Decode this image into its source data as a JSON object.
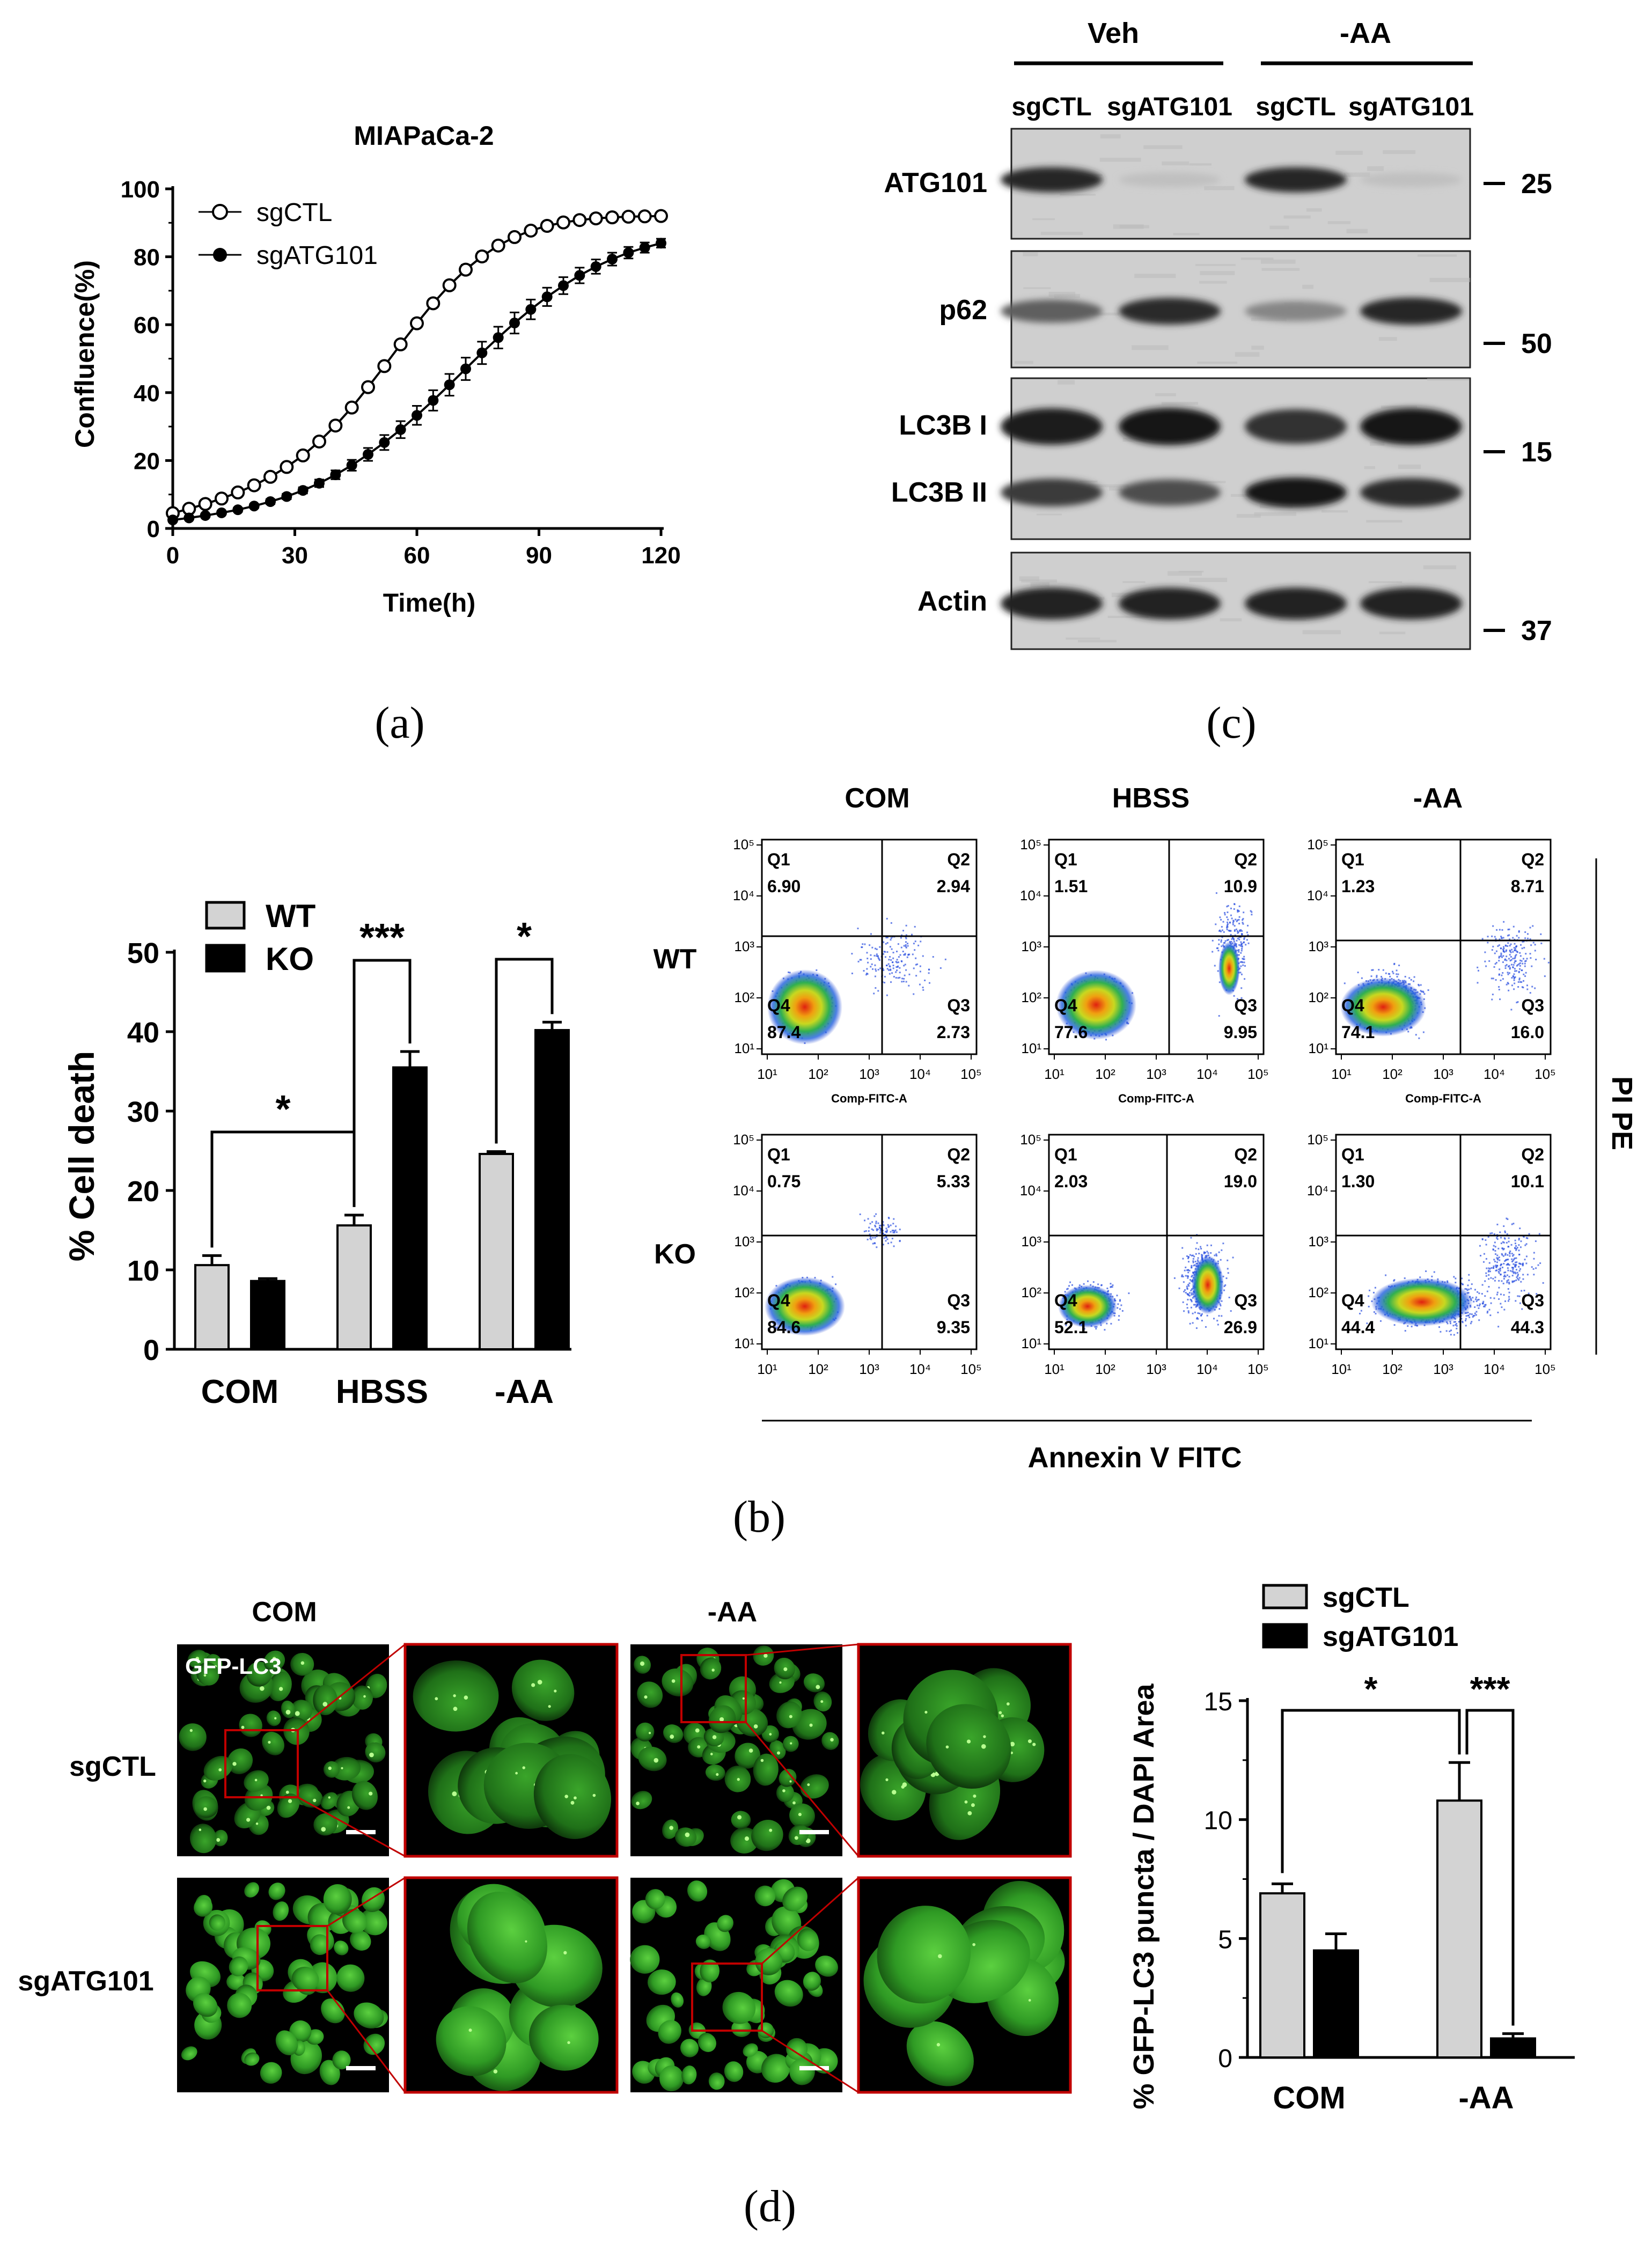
{
  "panel_labels": {
    "a": "(a)",
    "b": "(b)",
    "c": "(c)",
    "d": "(d)"
  },
  "colors": {
    "gray_bar": "#d3d3d3",
    "black_bar": "#000000",
    "gfp_green": "#3aaa2a",
    "inset_red": "#c00000"
  },
  "chart_data": [
    {
      "id": "a",
      "type": "line",
      "title": "MIAPaCa-2",
      "xlabel": "Time(h)",
      "ylabel": "Confluence(%)",
      "xlim": [
        0,
        120
      ],
      "ylim": [
        0,
        100
      ],
      "xticks": [
        0,
        30,
        60,
        90,
        120
      ],
      "yticks": [
        0,
        20,
        40,
        60,
        80,
        100
      ],
      "legend_position": "top-left",
      "x": [
        0,
        4,
        8,
        12,
        16,
        20,
        24,
        28,
        32,
        36,
        40,
        44,
        48,
        52,
        56,
        60,
        64,
        68,
        72,
        76,
        80,
        84,
        88,
        92,
        96,
        100,
        104,
        108,
        112,
        116,
        120
      ],
      "series": [
        {
          "name": "sgCTL",
          "marker": "open-circle",
          "values": [
            4.5,
            5.8,
            7.2,
            8.8,
            10.6,
            12.7,
            15.2,
            18.1,
            21.5,
            25.6,
            30.3,
            35.6,
            41.6,
            47.8,
            54.2,
            60.4,
            66.3,
            71.6,
            76.2,
            80.1,
            83.3,
            85.8,
            87.7,
            89.1,
            90.1,
            90.8,
            91.3,
            91.6,
            91.8,
            91.9,
            92.0
          ],
          "errors": [
            0.5,
            0.5,
            0.5,
            0.5,
            0.5,
            0.5,
            0.5,
            0.6,
            0.6,
            0.7,
            0.8,
            0.9,
            1.0,
            1.1,
            1.2,
            1.2,
            1.3,
            1.3,
            1.4,
            1.4,
            1.3,
            1.2,
            1.1,
            1.0,
            0.9,
            0.8,
            0.8,
            0.7,
            0.7,
            0.6,
            0.6
          ]
        },
        {
          "name": "sgATG101",
          "marker": "filled-circle",
          "values": [
            2.5,
            3.1,
            3.8,
            4.6,
            5.5,
            6.6,
            7.9,
            9.4,
            11.2,
            13.3,
            15.8,
            18.6,
            21.8,
            25.3,
            29.1,
            33.3,
            37.7,
            42.3,
            47.0,
            51.7,
            56.2,
            60.5,
            64.5,
            68.2,
            71.5,
            74.5,
            77.1,
            79.3,
            81.2,
            82.7,
            84.0
          ],
          "errors": [
            0.5,
            0.5,
            0.5,
            0.5,
            0.6,
            0.6,
            0.7,
            0.8,
            0.9,
            1.1,
            1.3,
            1.6,
            1.9,
            2.2,
            2.5,
            2.8,
            3.0,
            3.2,
            3.3,
            3.3,
            3.2,
            3.1,
            2.9,
            2.7,
            2.5,
            2.3,
            2.1,
            1.9,
            1.7,
            1.5,
            1.3
          ]
        }
      ]
    },
    {
      "id": "b-bars",
      "type": "bar",
      "ylabel": "% Cell death",
      "ylim": [
        0,
        50
      ],
      "yticks": [
        0,
        10,
        20,
        30,
        40,
        50
      ],
      "categories": [
        "COM",
        "HBSS",
        "-AA"
      ],
      "legend_position": "top-left",
      "series": [
        {
          "name": "WT",
          "values": [
            10.6,
            15.6,
            24.6
          ],
          "errors": [
            1.2,
            1.3,
            0.3
          ]
        },
        {
          "name": "KO",
          "values": [
            8.6,
            35.5,
            40.2
          ],
          "errors": [
            0.3,
            2.0,
            1.0
          ]
        }
      ],
      "annotations": [
        {
          "label": "*",
          "from": "COM:WT",
          "to": "HBSS:WT"
        },
        {
          "label": "***",
          "from": "HBSS:WT",
          "to": "HBSS:KO"
        },
        {
          "label": "*",
          "from": "-AA:WT",
          "to": "-AA:KO"
        }
      ]
    },
    {
      "id": "d-bars",
      "type": "bar",
      "ylabel": "% GFP-LC3 puncta / DAPI  Area",
      "ylim": [
        0,
        15
      ],
      "yticks": [
        0,
        5,
        10,
        15
      ],
      "categories": [
        "COM",
        "-AA"
      ],
      "legend_position": "top",
      "series": [
        {
          "name": "sgCTL",
          "values": [
            6.9,
            10.8
          ],
          "errors": [
            0.4,
            1.6
          ]
        },
        {
          "name": "sgATG101",
          "values": [
            4.5,
            0.8
          ],
          "errors": [
            0.7,
            0.2
          ]
        }
      ],
      "annotations": [
        {
          "label": "*",
          "from": "COM:sgCTL",
          "to": "-AA:sgCTL"
        },
        {
          "label": "***",
          "from": "-AA:sgCTL",
          "to": "-AA:sgATG101"
        }
      ]
    }
  ],
  "blot": {
    "groups": [
      "Veh",
      "-AA"
    ],
    "lanes": [
      "sgCTL",
      "sgATG101",
      "sgCTL",
      "sgATG101"
    ],
    "rows": [
      {
        "label": "ATG101",
        "marker": "25",
        "bands": [
          0.85,
          0.04,
          0.85,
          0.04
        ]
      },
      {
        "label": "p62",
        "marker": "50",
        "bands": [
          0.55,
          0.82,
          0.35,
          0.85
        ]
      },
      {
        "label": "LC3B I",
        "marker": "15",
        "bands": [
          0.9,
          0.95,
          0.8,
          0.92
        ]
      },
      {
        "label": "LC3B II",
        "marker": "",
        "bands": [
          0.75,
          0.65,
          0.92,
          0.82
        ]
      },
      {
        "label": "Actin",
        "marker": "37",
        "bands": [
          0.88,
          0.88,
          0.88,
          0.88
        ]
      }
    ]
  },
  "flow": {
    "columns": [
      "COM",
      "HBSS",
      "-AA"
    ],
    "rows": [
      "WT",
      "KO"
    ],
    "x_axis_label": "Comp-FITC-A",
    "bottom_label": "Annexin V FITC",
    "side_label": "PI PE",
    "tick_labels": [
      "10¹",
      "10²",
      "10³",
      "10⁴",
      "10⁵"
    ],
    "plots": [
      {
        "Q1": "6.90",
        "Q2": "2.94",
        "Q3": "2.73",
        "Q4": "87.4",
        "axis_label": "Comp-FITC-A"
      },
      {
        "Q1": "1.51",
        "Q2": "10.9",
        "Q3": "9.95",
        "Q4": "77.6",
        "axis_label": "Comp-FITC-A"
      },
      {
        "Q1": "1.23",
        "Q2": "8.71",
        "Q3": "16.0",
        "Q4": "74.1",
        "axis_label": "Comp-FITC-A"
      },
      {
        "Q1": "0.75",
        "Q2": "5.33",
        "Q3": "9.35",
        "Q4": "84.6",
        "axis_label": ""
      },
      {
        "Q1": "2.03",
        "Q2": "19.0",
        "Q3": "26.9",
        "Q4": "52.1",
        "axis_label": ""
      },
      {
        "Q1": "1.30",
        "Q2": "10.1",
        "Q3": "44.3",
        "Q4": "44.4",
        "axis_label": ""
      }
    ]
  },
  "micro": {
    "columns": [
      "COM",
      "-AA"
    ],
    "rows": [
      "sgCTL",
      "sgATG101"
    ],
    "stain_label": "GFP-LC3"
  }
}
